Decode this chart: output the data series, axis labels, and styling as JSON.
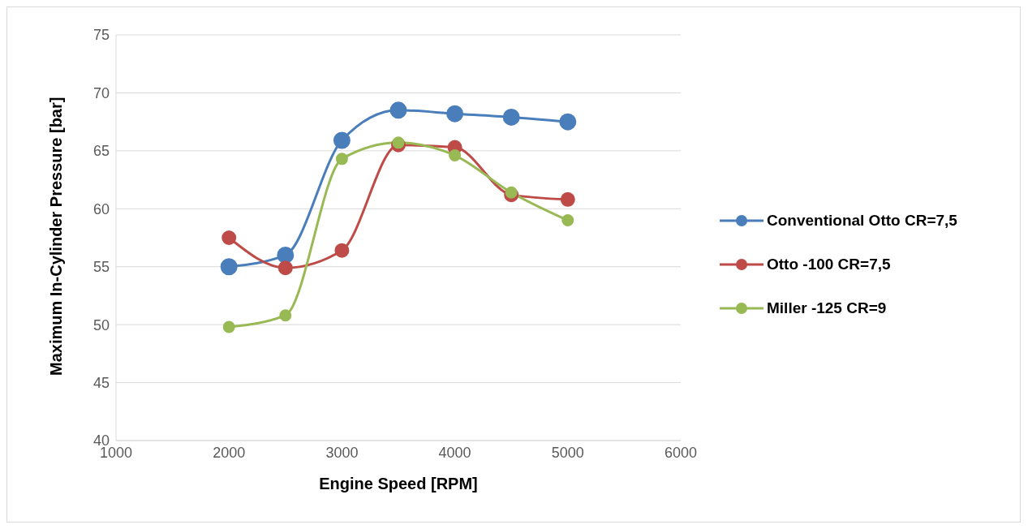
{
  "chart_data": {
    "type": "line",
    "xlabel": "Engine Speed [RPM]",
    "ylabel": "Maximum In-Cylinder Pressure [bar]",
    "x": [
      2000,
      2500,
      3000,
      3500,
      4000,
      4500,
      5000
    ],
    "series": [
      {
        "name": "Conventional Otto CR=7,5",
        "color": "#4a7ebb",
        "values": [
          55.0,
          56.0,
          65.9,
          68.5,
          68.2,
          67.9,
          67.5
        ]
      },
      {
        "name": "Otto -100 CR=7,5",
        "color": "#be4b48",
        "values": [
          57.5,
          54.9,
          56.4,
          65.5,
          65.3,
          61.2,
          60.8
        ]
      },
      {
        "name": "Miller -125 CR=9",
        "color": "#98b954",
        "values": [
          49.8,
          50.8,
          64.3,
          65.7,
          64.6,
          61.4,
          59.0
        ]
      }
    ],
    "xlim": [
      1000,
      6000
    ],
    "xticks": [
      1000,
      2000,
      3000,
      4000,
      5000,
      6000
    ],
    "ylim": [
      40,
      75
    ],
    "yticks": [
      40,
      45,
      50,
      55,
      60,
      65,
      70,
      75
    ],
    "grid": "y",
    "legend": "right",
    "marker": "circle",
    "line_style": "solid"
  }
}
